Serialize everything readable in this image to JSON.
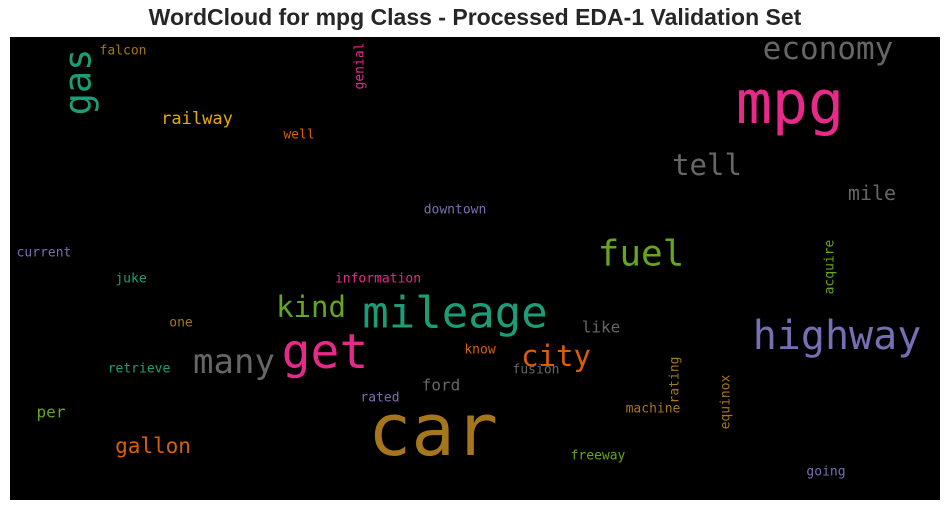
{
  "title": "WordCloud for mpg Class - Processed EDA-1 Validation Set",
  "chart_data": {
    "type": "wordcloud",
    "background": "#000000",
    "words": [
      {
        "text": "car",
        "weight": 1.0,
        "color": "#a6761d",
        "rotate": 0
      },
      {
        "text": "mpg",
        "weight": 0.86,
        "color": "#e7298a",
        "rotate": 0
      },
      {
        "text": "get",
        "weight": 0.66,
        "color": "#e7298a",
        "rotate": 0
      },
      {
        "text": "mileage",
        "weight": 0.6,
        "color": "#1b9e77",
        "rotate": 0
      },
      {
        "text": "highway",
        "weight": 0.56,
        "color": "#7570b3",
        "rotate": 0
      },
      {
        "text": "many",
        "weight": 0.45,
        "color": "#666666",
        "rotate": 0
      },
      {
        "text": "fuel",
        "weight": 0.5,
        "color": "#66a61e",
        "rotate": 0
      },
      {
        "text": "economy",
        "weight": 0.42,
        "color": "#666666",
        "rotate": 0
      },
      {
        "text": "gas",
        "weight": 0.52,
        "color": "#1b9e77",
        "rotate": -90
      },
      {
        "text": "kind",
        "weight": 0.4,
        "color": "#66a61e",
        "rotate": 0
      },
      {
        "text": "city",
        "weight": 0.4,
        "color": "#d95f02",
        "rotate": 0
      },
      {
        "text": "tell",
        "weight": 0.4,
        "color": "#666666",
        "rotate": 0
      },
      {
        "text": "mile",
        "weight": 0.28,
        "color": "#666666",
        "rotate": 0
      },
      {
        "text": "gallon",
        "weight": 0.28,
        "color": "#d95f02",
        "rotate": 0
      },
      {
        "text": "railway",
        "weight": 0.23,
        "color": "#e6ab02",
        "rotate": 0
      },
      {
        "text": "like",
        "weight": 0.21,
        "color": "#666666",
        "rotate": 0
      },
      {
        "text": "ford",
        "weight": 0.21,
        "color": "#666666",
        "rotate": 0
      },
      {
        "text": "per",
        "weight": 0.21,
        "color": "#66a61e",
        "rotate": 0
      },
      {
        "text": "downtown",
        "weight": 0.16,
        "color": "#7570b3",
        "rotate": 0
      },
      {
        "text": "current",
        "weight": 0.16,
        "color": "#7570b3",
        "rotate": 0
      },
      {
        "text": "juke",
        "weight": 0.16,
        "color": "#1b9e77",
        "rotate": 0
      },
      {
        "text": "information",
        "weight": 0.16,
        "color": "#e7298a",
        "rotate": 0
      },
      {
        "text": "one",
        "weight": 0.16,
        "color": "#a6761d",
        "rotate": 0
      },
      {
        "text": "retrieve",
        "weight": 0.16,
        "color": "#1b9e77",
        "rotate": 0
      },
      {
        "text": "rated",
        "weight": 0.16,
        "color": "#7570b3",
        "rotate": 0
      },
      {
        "text": "know",
        "weight": 0.16,
        "color": "#d95f02",
        "rotate": 0
      },
      {
        "text": "fusion",
        "weight": 0.16,
        "color": "#666666",
        "rotate": 0
      },
      {
        "text": "machine",
        "weight": 0.16,
        "color": "#a6761d",
        "rotate": 0
      },
      {
        "text": "freeway",
        "weight": 0.16,
        "color": "#66a61e",
        "rotate": 0
      },
      {
        "text": "going",
        "weight": 0.16,
        "color": "#7570b3",
        "rotate": 0
      },
      {
        "text": "falcon",
        "weight": 0.16,
        "color": "#a6761d",
        "rotate": 0
      },
      {
        "text": "well",
        "weight": 0.16,
        "color": "#d95f02",
        "rotate": 0
      },
      {
        "text": "genial",
        "weight": 0.16,
        "color": "#e7298a",
        "rotate": -90
      },
      {
        "text": "acquire",
        "weight": 0.16,
        "color": "#66a61e",
        "rotate": -90
      },
      {
        "text": "rating",
        "weight": 0.16,
        "color": "#a6761d",
        "rotate": -90
      },
      {
        "text": "equinox",
        "weight": 0.16,
        "color": "#a6761d",
        "rotate": -90
      }
    ]
  }
}
